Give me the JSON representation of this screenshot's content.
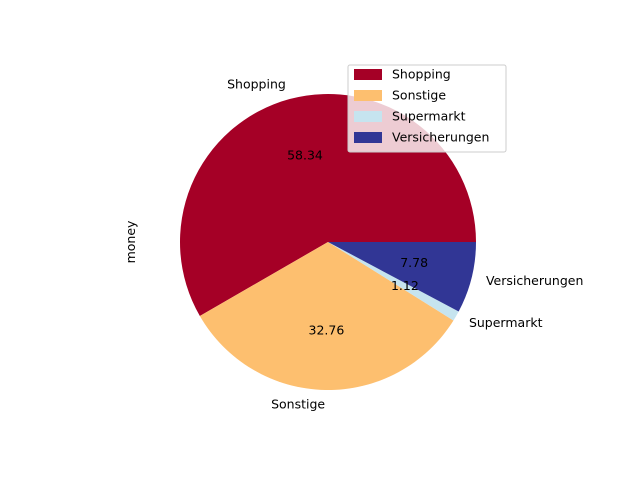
{
  "chart_data": {
    "type": "pie",
    "ylabel": "money",
    "categories": [
      "Shopping",
      "Sonstige",
      "Supermarkt",
      "Versicherungen"
    ],
    "values": [
      58.34,
      32.76,
      1.12,
      7.78
    ],
    "value_labels": [
      "58.34",
      "32.76",
      "1.12",
      "7.78"
    ],
    "colors": [
      "#a50026",
      "#fdbf6f",
      "#c6e4ef",
      "#313695"
    ],
    "start_angle_deg": 0,
    "direction": "counterclockwise",
    "legend": {
      "position": "top-right",
      "entries": [
        "Shopping",
        "Sonstige",
        "Supermarkt",
        "Versicherungen"
      ]
    }
  }
}
